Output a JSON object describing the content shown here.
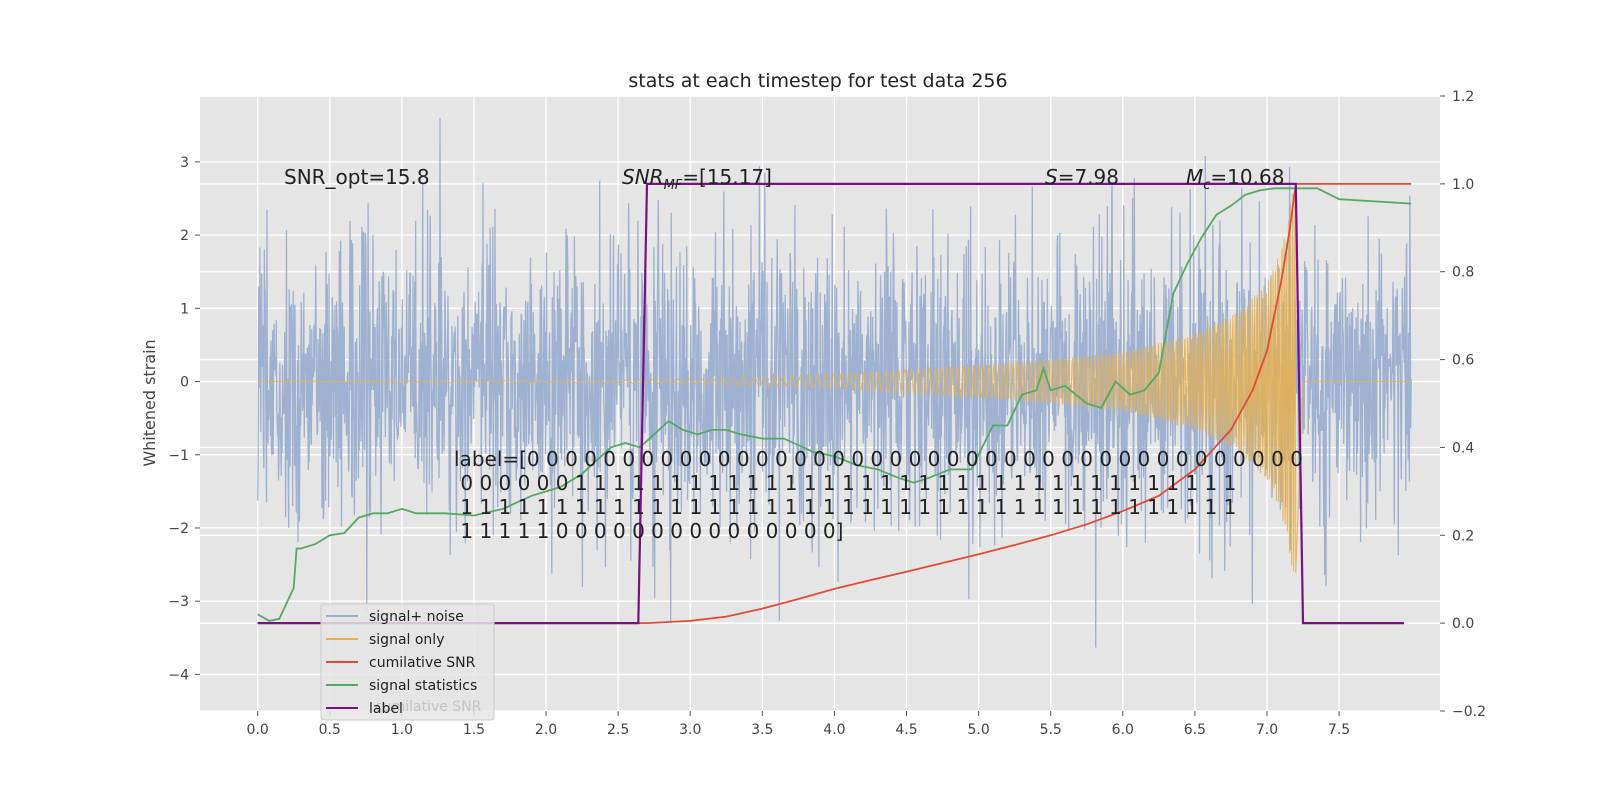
{
  "chart_data": {
    "type": "line",
    "title": "stats at each timestep for test data 256",
    "ylabel": "Whitened strain",
    "xlim": [
      -0.4,
      8.2
    ],
    "ylim_left": [
      -4.5,
      3.9
    ],
    "ylim_right": [
      -0.2,
      1.2
    ],
    "grid": true,
    "legend_position": "lower-left",
    "x_ticks": [
      0.0,
      0.5,
      1.0,
      1.5,
      2.0,
      2.5,
      3.0,
      3.5,
      4.0,
      4.5,
      5.0,
      5.5,
      6.0,
      6.5,
      7.0,
      7.5
    ],
    "x_tick_labels": [
      "0.0",
      "0.5",
      "1.0",
      "1.5",
      "2.0",
      "2.5",
      "3.0",
      "3.5",
      "4.0",
      "4.5",
      "5.0",
      "5.5",
      "6.0",
      "6.5",
      "7.0",
      "7.5"
    ],
    "y_left_ticks": [
      -4,
      -3,
      -2,
      -1,
      0,
      1,
      2,
      3
    ],
    "y_left_tick_labels": [
      "−4",
      "−3",
      "−2",
      "−1",
      "0",
      "1",
      "2",
      "3"
    ],
    "y_right_ticks": [
      -0.2,
      0.0,
      0.2,
      0.4,
      0.6,
      0.8,
      1.0,
      1.2
    ],
    "y_right_tick_labels": [
      "−0.2",
      "0.0",
      "0.2",
      "0.4",
      "0.6",
      "0.8",
      "1.0",
      "1.2"
    ],
    "series": [
      {
        "name": "signal+ noise",
        "axis": "left",
        "color": "#9aaed0",
        "kind": "noise",
        "x_range": [
          0.0,
          8.0
        ],
        "std_approx": 1.0
      },
      {
        "name": "signal only",
        "axis": "left",
        "color": "#e8b04c",
        "kind": "chirp",
        "x_range": [
          0.0,
          7.2
        ],
        "amplitude_envelope": [
          [
            0.0,
            0.0
          ],
          [
            3.0,
            0.03
          ],
          [
            4.0,
            0.1
          ],
          [
            5.0,
            0.22
          ],
          [
            5.5,
            0.3
          ],
          [
            6.0,
            0.4
          ],
          [
            6.5,
            0.65
          ],
          [
            6.8,
            0.95
          ],
          [
            7.0,
            1.35
          ],
          [
            7.1,
            1.8
          ],
          [
            7.2,
            2.8
          ]
        ]
      },
      {
        "name": "cumilative SNR",
        "axis": "right",
        "color": "#e24a33",
        "points": [
          [
            0.0,
            0.0
          ],
          [
            2.7,
            0.0
          ],
          [
            3.0,
            0.005
          ],
          [
            3.25,
            0.015
          ],
          [
            3.5,
            0.033
          ],
          [
            3.75,
            0.055
          ],
          [
            4.0,
            0.078
          ],
          [
            4.25,
            0.098
          ],
          [
            4.5,
            0.117
          ],
          [
            4.75,
            0.137
          ],
          [
            5.0,
            0.157
          ],
          [
            5.25,
            0.178
          ],
          [
            5.5,
            0.2
          ],
          [
            5.75,
            0.225
          ],
          [
            6.0,
            0.255
          ],
          [
            6.25,
            0.29
          ],
          [
            6.5,
            0.35
          ],
          [
            6.75,
            0.44
          ],
          [
            6.9,
            0.53
          ],
          [
            7.0,
            0.62
          ],
          [
            7.1,
            0.78
          ],
          [
            7.16,
            0.9
          ],
          [
            7.2,
            1.0
          ],
          [
            8.0,
            1.0
          ]
        ]
      },
      {
        "name": "signal statistics",
        "axis": "right",
        "color": "#56a862",
        "points": [
          [
            0.0,
            0.02
          ],
          [
            0.08,
            0.005
          ],
          [
            0.15,
            0.01
          ],
          [
            0.25,
            0.08
          ],
          [
            0.27,
            0.17
          ],
          [
            0.3,
            0.17
          ],
          [
            0.4,
            0.18
          ],
          [
            0.5,
            0.2
          ],
          [
            0.6,
            0.205
          ],
          [
            0.7,
            0.24
          ],
          [
            0.8,
            0.25
          ],
          [
            0.9,
            0.25
          ],
          [
            1.0,
            0.26
          ],
          [
            1.1,
            0.25
          ],
          [
            1.3,
            0.25
          ],
          [
            1.5,
            0.245
          ],
          [
            1.7,
            0.26
          ],
          [
            1.9,
            0.29
          ],
          [
            2.1,
            0.31
          ],
          [
            2.25,
            0.34
          ],
          [
            2.35,
            0.37
          ],
          [
            2.45,
            0.4
          ],
          [
            2.55,
            0.41
          ],
          [
            2.65,
            0.4
          ],
          [
            2.75,
            0.43
          ],
          [
            2.85,
            0.46
          ],
          [
            2.95,
            0.44
          ],
          [
            3.05,
            0.43
          ],
          [
            3.15,
            0.44
          ],
          [
            3.25,
            0.44
          ],
          [
            3.35,
            0.43
          ],
          [
            3.5,
            0.42
          ],
          [
            3.65,
            0.42
          ],
          [
            3.85,
            0.39
          ],
          [
            4.0,
            0.38
          ],
          [
            4.15,
            0.36
          ],
          [
            4.3,
            0.35
          ],
          [
            4.45,
            0.33
          ],
          [
            4.55,
            0.32
          ],
          [
            4.65,
            0.33
          ],
          [
            4.8,
            0.35
          ],
          [
            4.95,
            0.35
          ],
          [
            5.1,
            0.45
          ],
          [
            5.2,
            0.45
          ],
          [
            5.3,
            0.52
          ],
          [
            5.4,
            0.53
          ],
          [
            5.45,
            0.58
          ],
          [
            5.5,
            0.53
          ],
          [
            5.6,
            0.54
          ],
          [
            5.75,
            0.5
          ],
          [
            5.85,
            0.49
          ],
          [
            5.95,
            0.55
          ],
          [
            6.05,
            0.52
          ],
          [
            6.15,
            0.53
          ],
          [
            6.25,
            0.57
          ],
          [
            6.35,
            0.75
          ],
          [
            6.45,
            0.82
          ],
          [
            6.55,
            0.88
          ],
          [
            6.65,
            0.93
          ],
          [
            6.75,
            0.95
          ],
          [
            6.85,
            0.975
          ],
          [
            6.95,
            0.985
          ],
          [
            7.05,
            0.99
          ],
          [
            7.2,
            0.99
          ],
          [
            7.35,
            0.99
          ],
          [
            7.5,
            0.965
          ],
          [
            7.75,
            0.96
          ],
          [
            8.0,
            0.955
          ]
        ]
      },
      {
        "name": "label",
        "axis": "right",
        "color": "#7b0f83",
        "points": [
          [
            0.0,
            0.0
          ],
          [
            2.64,
            0.0
          ],
          [
            2.7,
            1.0
          ],
          [
            7.2,
            1.0
          ],
          [
            7.25,
            0.0
          ],
          [
            7.95,
            0.0
          ]
        ]
      }
    ],
    "legend_entries": [
      {
        "name": "signal+ noise",
        "color": "#9aaed0"
      },
      {
        "name": "signal only",
        "color": "#e8b04c"
      },
      {
        "name": "cumilative SNR",
        "color": "#e24a33"
      },
      {
        "name": "signal statistics",
        "color": "#56a862"
      },
      {
        "name": "label",
        "color": "#7b0f83"
      }
    ],
    "legend_ghost_text": "cumilative SNR",
    "annotations": {
      "snr_opt": "SNR_opt=15.8",
      "snr_mf_symbol": "SNR",
      "snr_mf_sub": "MF",
      "snr_mf_value": "=[15.17]",
      "s_symbol": "S",
      "s_value": "=7.98",
      "mc_symbol": "M",
      "mc_sub": "c",
      "mc_value": "=10.68",
      "label_lines": [
        "label=[0 0 0 0 0 0 0 0 0 0 0 0 0 0 0 0 0 0 0 0 0 0 0 0 0 0 0 0 0 0 0 0 0 0 0 0 0 0 0 0 0",
        " 0 0 0 0 0 0 1 1 1 1 1 1 1 1 1 1 1 1 1 1 1 1 1 1 1 1 1 1 1 1 1 1 1 1 1 1 1 1 1 1 1",
        " 1 1 1 1 1 1 1 1 1 1 1 1 1 1 1 1 1 1 1 1 1 1 1 1 1 1 1 1 1 1 1 1 1 1 1 1 1 1 1 1 1",
        " 1 1 1 1 1 0 0 0 0 0 0 0 0 0 0 0 0 0 0 0]"
      ]
    }
  }
}
